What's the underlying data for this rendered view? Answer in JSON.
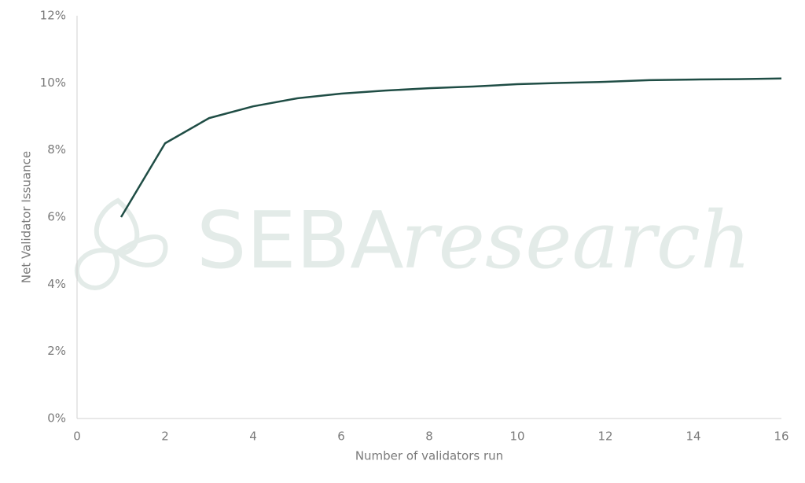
{
  "chart_data": {
    "type": "line",
    "x_label": "Number of validators run",
    "y_label": "Net Validator Issuance",
    "watermark": {
      "brand": "SEBA",
      "suffix": "research"
    },
    "x": [
      1,
      2,
      3,
      4,
      5,
      6,
      7,
      8,
      9,
      10,
      11,
      12,
      13,
      14,
      15,
      16
    ],
    "series": [
      {
        "color": "#1f4d45",
        "values": [
          6.0,
          8.2,
          8.95,
          9.3,
          9.54,
          9.68,
          9.77,
          9.84,
          9.89,
          9.96,
          10.0,
          10.03,
          10.08,
          10.1,
          10.11,
          10.13
        ]
      }
    ],
    "xlim": [
      0,
      16
    ],
    "xticks": [
      0,
      2,
      4,
      6,
      8,
      10,
      12,
      14,
      16
    ],
    "ylim": [
      0,
      12
    ],
    "yticks": [
      {
        "value": 0,
        "label": "0%"
      },
      {
        "value": 2,
        "label": "2%"
      },
      {
        "value": 4,
        "label": "4%"
      },
      {
        "value": 6,
        "label": "6%"
      },
      {
        "value": 8,
        "label": "8%"
      },
      {
        "value": 10,
        "label": "10%"
      },
      {
        "value": 12,
        "label": "12%"
      }
    ],
    "grid": false
  }
}
